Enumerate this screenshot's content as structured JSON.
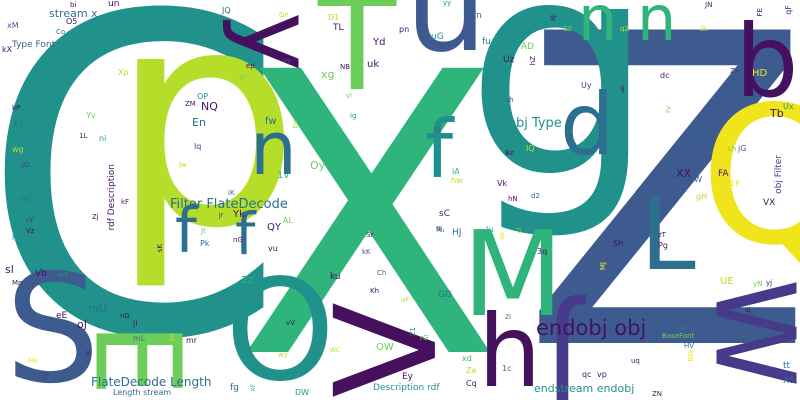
{
  "palette": {
    "deep_purple": "#45115f",
    "indigo": "#463b8a",
    "blue": "#3d5b8f",
    "teal_blue": "#2d6f8e",
    "teal": "#21918c",
    "green": "#2fb47c",
    "lime_green": "#6cce59",
    "yellow_green": "#b5de2b",
    "yellow": "#f0e51c"
  },
  "words": [
    {
      "key": "C",
      "text": "C",
      "color": "#21918c"
    },
    {
      "key": "X",
      "text": "X",
      "color": "#2fb47c"
    },
    {
      "key": "Z",
      "text": "Z",
      "color": "#3d5b8f"
    },
    {
      "key": "p",
      "text": "p",
      "color": "#b5de2b"
    },
    {
      "key": "g",
      "text": "g",
      "color": "#21918c"
    },
    {
      "key": "T",
      "text": "T",
      "color": "#6cce59"
    },
    {
      "key": "u",
      "text": "u",
      "color": "#3d5b8f"
    },
    {
      "key": "y",
      "text": "y",
      "color": "#45115f"
    },
    {
      "key": "Q",
      "text": "Q",
      "color": "#f0e51c"
    },
    {
      "key": "b",
      "text": "b",
      "color": "#45115f"
    },
    {
      "key": "S",
      "text": "S",
      "color": "#3d5b8f"
    },
    {
      "key": "O",
      "text": "O",
      "color": "#21918c"
    },
    {
      "key": "V",
      "text": "V",
      "color": "#45115f"
    },
    {
      "key": "M",
      "text": "M",
      "color": "#2fb47c"
    },
    {
      "key": "E",
      "text": "E",
      "color": "#6cce59"
    },
    {
      "key": "J",
      "text": "J",
      "color": "#463b8a"
    },
    {
      "key": "W",
      "text": "W",
      "color": "#463b8a"
    },
    {
      "key": "h",
      "text": "h",
      "color": "#45115f"
    },
    {
      "key": "d",
      "text": "d",
      "color": "#2d6f8e"
    },
    {
      "key": "L",
      "text": "L",
      "color": "#2d6f8e"
    },
    {
      "key": "n1",
      "text": "n n",
      "color": "#2fb47c"
    },
    {
      "key": "n2",
      "text": "n",
      "color": "#2d6f8e"
    },
    {
      "key": "f1",
      "text": "f",
      "color": "#21918c"
    },
    {
      "key": "f2",
      "text": "f",
      "color": "#2d6f8e"
    },
    {
      "key": "f3",
      "text": "f",
      "color": "#2d6f8e"
    },
    {
      "key": "endobjobj",
      "text": "endobj obj",
      "color": "#45115f"
    },
    {
      "key": "filterflate",
      "text": "Filter FlateDecode",
      "color": "#2d6f8e"
    },
    {
      "key": "flatelength",
      "text": "FlateDecode Length",
      "color": "#2d6f8e"
    },
    {
      "key": "objtype",
      "text": "obj Type",
      "color": "#21918c"
    },
    {
      "key": "endstream",
      "text": "endstream endobj",
      "color": "#21918c"
    },
    {
      "key": "streamx",
      "text": "stream x",
      "color": "#2d6f8e"
    },
    {
      "key": "typefont",
      "text": "Type Font",
      "color": "#3d5b8f"
    },
    {
      "key": "rdfdesc",
      "text": "rdf Description",
      "color": "#45115f"
    },
    {
      "key": "objfilter",
      "text": "obj Filter",
      "color": "#463b8a"
    },
    {
      "key": "descrdf",
      "text": "Description rdf",
      "color": "#21918c"
    },
    {
      "key": "lengthstream",
      "text": "Length stream",
      "color": "#2d6f8e"
    },
    {
      "key": "basefont",
      "text": "BaseFont",
      "color": "#6cce59"
    },
    {
      "key": "XX",
      "text": "XX",
      "color": "#45115f"
    },
    {
      "key": "Tb",
      "text": "Tb",
      "color": "#45115f"
    },
    {
      "key": "En",
      "text": "En",
      "color": "#2d6f8e"
    },
    {
      "key": "NQ",
      "text": "NQ",
      "color": "#45115f"
    },
    {
      "key": "Oy",
      "text": "Oy",
      "color": "#6cce59"
    },
    {
      "key": "xg",
      "text": "xg",
      "color": "#6cce59"
    },
    {
      "key": "uk",
      "text": "uk",
      "color": "#45115f"
    },
    {
      "key": "Yd",
      "text": "Yd",
      "color": "#45115f"
    },
    {
      "key": "fw",
      "text": "fw",
      "color": "#2d6f8e"
    },
    {
      "key": "1v",
      "text": "1v",
      "color": "#2fb47c"
    },
    {
      "key": "Yk",
      "text": "Yk",
      "color": "#45115f"
    },
    {
      "key": "QY",
      "text": "QY",
      "color": "#45115f"
    },
    {
      "key": "Zz",
      "text": "Zz",
      "color": "#2fb47c"
    },
    {
      "key": "sl",
      "text": "sl",
      "color": "#45115f"
    },
    {
      "key": "mU",
      "text": "mU",
      "color": "#2d6f8e"
    },
    {
      "key": "oJ",
      "text": "oJ",
      "color": "#45115f"
    },
    {
      "key": "eE",
      "text": "eE",
      "color": "#45115f"
    },
    {
      "key": "Kz",
      "text": "Kz",
      "color": "#45115f"
    },
    {
      "key": "OW",
      "text": "OW",
      "color": "#6cce59"
    },
    {
      "key": "Ey",
      "text": "Ey",
      "color": "#45115f"
    },
    {
      "key": "GG",
      "text": "GG",
      "color": "#2d6f8e"
    },
    {
      "key": "HJ",
      "text": "HJ",
      "color": "#2d6f8e"
    },
    {
      "key": "sC",
      "text": "sC",
      "color": "#45115f"
    },
    {
      "key": "UE",
      "text": "UE",
      "color": "#b5de2b"
    },
    {
      "key": "HD",
      "text": "HD",
      "color": "#f0e51c"
    },
    {
      "key": "VX",
      "text": "VX",
      "color": "#45115f"
    },
    {
      "key": "FA",
      "text": "FA",
      "color": "#45115f"
    },
    {
      "key": "ku",
      "text": "ku",
      "color": "#45115f"
    },
    {
      "key": "fg",
      "text": "fg",
      "color": "#2d6f8e"
    },
    {
      "key": "Vb",
      "text": "Vb",
      "color": "#45115f"
    },
    {
      "key": "ir",
      "text": "ir",
      "color": "#463b8a"
    },
    {
      "key": "oM",
      "text": "oM",
      "color": "#2d6f8e"
    },
    {
      "key": "tt",
      "text": "tt",
      "color": "#2d6f8e"
    },
    {
      "key": "X5",
      "text": "X5",
      "color": "#2d6f8e"
    },
    {
      "key": "un",
      "text": "un",
      "color": "#45115f"
    },
    {
      "key": "JQ",
      "text": "JQ",
      "color": "#2d6f8e"
    },
    {
      "key": "D1",
      "text": "D1",
      "color": "#b5de2b"
    },
    {
      "key": "TL",
      "text": "TL",
      "color": "#45115f"
    },
    {
      "key": "fn",
      "text": "fn",
      "color": "#2d6f8e"
    },
    {
      "key": "fu",
      "text": "fu",
      "color": "#2d6f8e"
    },
    {
      "key": "uG",
      "text": "uG",
      "color": "#21918c"
    },
    {
      "key": "AD",
      "text": "AD",
      "color": "#6cce59"
    },
    {
      "key": "Uz",
      "text": "Uz",
      "color": "#45115f"
    },
    {
      "key": "pn",
      "text": "pn",
      "color": "#45115f"
    },
    {
      "key": "O5",
      "text": "O5",
      "color": "#45115f"
    },
    {
      "key": "Xp",
      "text": "Xp",
      "color": "#b5de2b"
    },
    {
      "key": "Yv",
      "text": "Yv",
      "color": "#6cce59"
    },
    {
      "key": "F3",
      "text": "F3",
      "color": "#2d6f8e"
    },
    {
      "key": "wg",
      "text": "wg",
      "color": "#b5de2b"
    },
    {
      "key": "ni",
      "text": "ni",
      "color": "#21918c"
    },
    {
      "key": "lq",
      "text": "lq",
      "color": "#463b8a"
    },
    {
      "key": "OP",
      "text": "OP",
      "color": "#21918c"
    },
    {
      "key": "Pk",
      "text": "Pk",
      "color": "#2d6f8e"
    },
    {
      "key": "vu",
      "text": "vu",
      "color": "#45115f"
    },
    {
      "key": "AL",
      "text": "AL",
      "color": "#6cce59"
    },
    {
      "key": "Jt",
      "text": "Jt",
      "color": "#6cce59"
    },
    {
      "key": "iK",
      "text": "iK",
      "color": "#2d6f8e"
    },
    {
      "key": "ah",
      "text": "ah",
      "color": "#2d6f8e"
    },
    {
      "key": "IQ",
      "text": "IQ",
      "color": "#b5de2b"
    },
    {
      "key": "iA",
      "text": "iA",
      "color": "#2fb47c"
    },
    {
      "key": "hw",
      "text": "hw",
      "color": "#b5de2b"
    },
    {
      "key": "Vk",
      "text": "Vk",
      "color": "#45115f"
    },
    {
      "key": "Iu",
      "text": "Iu",
      "color": "#2fb47c"
    },
    {
      "key": "3q",
      "text": "3q",
      "color": "#45115f"
    },
    {
      "key": "Pg",
      "text": "Pg",
      "color": "#45115f"
    },
    {
      "key": "Sh",
      "text": "Sh",
      "color": "#45115f"
    },
    {
      "key": "Uy",
      "text": "Uy",
      "color": "#463b8a"
    },
    {
      "key": "ij",
      "text": "ij",
      "color": "#45115f"
    },
    {
      "key": "dc",
      "text": "dc",
      "color": "#45115f"
    },
    {
      "key": "AZ",
      "text": "AZ",
      "color": "#2d6f8e"
    },
    {
      "key": "tW",
      "text": "tW",
      "color": "#3d5b8f"
    },
    {
      "key": "jG",
      "text": "jG",
      "color": "#3d5b8f"
    },
    {
      "key": "Ux",
      "text": "Ux",
      "color": "#21918c"
    },
    {
      "key": "Zx",
      "text": "Zx",
      "color": "#463b8a"
    },
    {
      "key": "CE",
      "text": "CE",
      "color": "#6cce59"
    },
    {
      "key": "FE",
      "text": "FE",
      "color": "#45115f"
    },
    {
      "key": "qF",
      "text": "qF",
      "color": "#463b8a"
    },
    {
      "key": "kX",
      "text": "kX",
      "color": "#45115f"
    },
    {
      "key": "xM",
      "text": "xM",
      "color": "#3d5b8f"
    },
    {
      "key": "kP",
      "text": "kP",
      "color": "#45115f"
    },
    {
      "key": "jO",
      "text": "jO",
      "color": "#463b8a"
    },
    {
      "key": "rY",
      "text": "rY",
      "color": "#463b8a"
    },
    {
      "key": "Zj",
      "text": "Zj",
      "color": "#45115f"
    },
    {
      "key": "FN",
      "text": "FN",
      "color": "#f0e51c"
    },
    {
      "key": "Za",
      "text": "Za",
      "color": "#b5de2b"
    },
    {
      "key": "Cq",
      "text": "Cq",
      "color": "#45115f"
    },
    {
      "key": "xd",
      "text": "xd",
      "color": "#2fb47c"
    },
    {
      "key": "1c",
      "text": "1c",
      "color": "#2d6f8e"
    },
    {
      "key": "qc",
      "text": "qc",
      "color": "#45115f"
    },
    {
      "key": "vp",
      "text": "vp",
      "color": "#45115f"
    },
    {
      "key": "ZN",
      "text": "ZN",
      "color": "#45115f"
    },
    {
      "key": "HV",
      "text": "HV",
      "color": "#2d6f8e"
    },
    {
      "key": "uq",
      "text": "uq",
      "color": "#45115f"
    },
    {
      "key": "vy",
      "text": "vy",
      "color": "#3d5b8f"
    },
    {
      "key": "ep",
      "text": "ep",
      "color": "#45115f"
    },
    {
      "key": "NB",
      "text": "NB",
      "color": "#45115f"
    },
    {
      "key": "ZM",
      "text": "ZM",
      "color": "#45115f"
    },
    {
      "key": "jw",
      "text": "jw",
      "color": "#b5de2b"
    },
    {
      "key": "pv",
      "text": "pv",
      "color": "#b5de2b"
    },
    {
      "key": "Gn",
      "text": "Gn",
      "color": "#b5de2b"
    },
    {
      "key": "yy",
      "text": "yy",
      "color": "#21918c"
    },
    {
      "key": "JN",
      "text": "JN",
      "color": "#45115f"
    },
    {
      "key": "yj",
      "text": "yj",
      "color": "#45115f"
    },
    {
      "key": "kK",
      "text": "kK",
      "color": "#3d5b8f"
    },
    {
      "key": "Ch",
      "text": "Ch",
      "color": "#2d6f8e"
    },
    {
      "key": "Kh",
      "text": "Kh",
      "color": "#45115f"
    },
    {
      "key": "aF",
      "text": "aF",
      "color": "#b5de2b"
    },
    {
      "key": "rG",
      "text": "rG",
      "color": "#6cce59"
    },
    {
      "key": "ZU",
      "text": "ZU",
      "color": "#21918c"
    },
    {
      "key": "mr",
      "text": "mr",
      "color": "#45115f"
    },
    {
      "key": "mL",
      "text": "mL",
      "color": "#2d6f8e"
    },
    {
      "key": "ji",
      "text": "ji",
      "color": "#45115f"
    },
    {
      "key": "vV",
      "text": "vV",
      "color": "#45115f"
    },
    {
      "key": "wy",
      "text": "wy",
      "color": "#b5de2b"
    },
    {
      "key": "DW",
      "text": "DW",
      "color": "#21918c"
    },
    {
      "key": "Co",
      "text": "Co",
      "color": "#2d6f8e"
    },
    {
      "key": "bi",
      "text": "bi",
      "color": "#45115f"
    },
    {
      "key": "1L",
      "text": "1L",
      "color": "#45115f"
    },
    {
      "key": "Gd",
      "text": "Gd",
      "color": "#2d6f8e"
    },
    {
      "key": "Vz",
      "text": "Vz",
      "color": "#45115f"
    },
    {
      "key": "I6",
      "text": "I6",
      "color": "#21918c"
    },
    {
      "key": "Mn",
      "text": "Mn",
      "color": "#45115f"
    },
    {
      "key": "eq",
      "text": "eq",
      "color": "#21918c"
    },
    {
      "key": "ig",
      "text": "ig",
      "color": "#21918c"
    },
    {
      "key": "Bl",
      "text": "Bl",
      "color": "#2d6f8e"
    },
    {
      "key": "hN",
      "text": "hN",
      "color": "#45115f"
    },
    {
      "key": "d2",
      "text": "d2",
      "color": "#2d6f8e"
    },
    {
      "key": "gH",
      "text": "gH",
      "color": "#b5de2b"
    },
    {
      "key": "1P",
      "text": "1P",
      "color": "#f0e51c"
    },
    {
      "key": "Qj",
      "text": "Qj",
      "color": "#f0e51c"
    },
    {
      "key": "Lh",
      "text": "Lh",
      "color": "#6cce59"
    },
    {
      "key": "sj",
      "text": "sj",
      "color": "#45115f"
    },
    {
      "key": "yN",
      "text": "yN",
      "color": "#6cce59"
    },
    {
      "key": "zT",
      "text": "zT",
      "color": "#45115f"
    },
    {
      "key": "MJ",
      "text": "MJ",
      "color": "#f0e51c"
    },
    {
      "key": "Sr",
      "text": "Sr",
      "color": "#45115f"
    },
    {
      "key": "fB",
      "text": "fB",
      "color": "#45115f"
    },
    {
      "key": "nG",
      "text": "nG",
      "color": "#45115f"
    },
    {
      "key": "jr",
      "text": "jr",
      "color": "#45115f"
    },
    {
      "key": "kF",
      "text": "kF",
      "color": "#45115f"
    },
    {
      "key": "sK",
      "text": "sK",
      "color": "#45115f"
    },
    {
      "key": "hZ",
      "text": "hZ",
      "color": "#45115f"
    },
    {
      "key": "Z1",
      "text": "Z1",
      "color": "#2d6f8e"
    },
    {
      "key": "Jx",
      "text": "Jx",
      "color": "#6cce59"
    },
    {
      "key": "Vl",
      "text": "Vl",
      "color": "#6cce59"
    },
    {
      "key": "aJ",
      "text": "aJ",
      "color": "#45115f"
    },
    {
      "key": "qZ",
      "text": "qZ",
      "color": "#b5de2b"
    },
    {
      "key": "ZL",
      "text": "ZL",
      "color": "#b5de2b"
    },
    {
      "key": "TV",
      "text": "TV",
      "color": "#6cce59"
    },
    {
      "key": "BW",
      "text": "BW",
      "color": "#f0e51c"
    },
    {
      "key": "Ab",
      "text": "Ab",
      "color": "#f0e51c"
    },
    {
      "key": "Bz",
      "text": "Bz",
      "color": "#45115f"
    },
    {
      "key": "cl",
      "text": "cl",
      "color": "#b5de2b"
    },
    {
      "key": "Ru",
      "text": "Ru",
      "color": "#21918c"
    },
    {
      "key": "nG2",
      "text": "nG",
      "color": "#45115f"
    },
    {
      "key": "bB",
      "text": "bB",
      "color": "#b5de2b"
    },
    {
      "key": "XF",
      "text": "XF",
      "color": "#2fb47c"
    },
    {
      "key": "WC",
      "text": "WC",
      "color": "#b5de2b"
    },
    {
      "key": "Ic",
      "text": "Ic",
      "color": "#45115f"
    },
    {
      "key": "4E",
      "text": "4E",
      "color": "#b5de2b"
    },
    {
      "key": "ZI",
      "text": "ZI",
      "color": "#2d6f8e"
    },
    {
      "key": "oJ2",
      "text": "oJ",
      "color": "#b5de2b"
    }
  ]
}
